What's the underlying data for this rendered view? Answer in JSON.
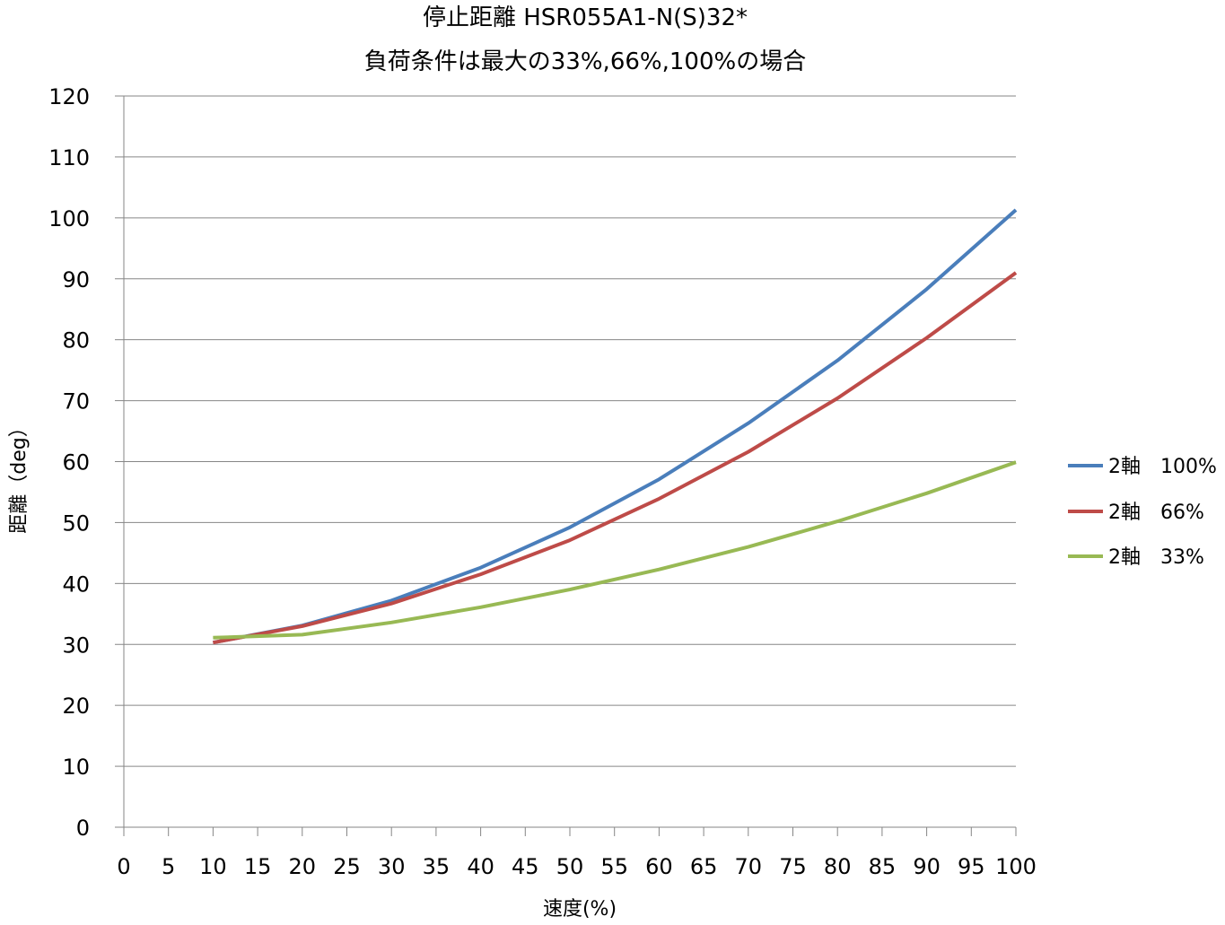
{
  "chart_data": {
    "type": "line",
    "title": [
      "停止距離 HSR055A1-N(S)32*",
      "負荷条件は最大の33%,66%,100%の場合"
    ],
    "xlabel": "速度(%)",
    "ylabel": "距離（deg）",
    "xlim": [
      0,
      100
    ],
    "ylim": [
      0,
      120
    ],
    "x_ticks": [
      "0",
      "5",
      "10",
      "15",
      "20",
      "25",
      "30",
      "35",
      "40",
      "45",
      "50",
      "55",
      "60",
      "65",
      "70",
      "75",
      "80",
      "85",
      "90",
      "95",
      "100"
    ],
    "y_ticks": [
      "0",
      "10",
      "20",
      "30",
      "40",
      "50",
      "60",
      "70",
      "80",
      "90",
      "100",
      "110",
      "120"
    ],
    "x": [
      10,
      20,
      30,
      40,
      50,
      60,
      70,
      80,
      90,
      100
    ],
    "grid": "horizontal",
    "legend_position": "right",
    "series": [
      {
        "name": "2軸　100%",
        "color": "#4a7ebb",
        "values": [
          30.3,
          33.1,
          37.2,
          42.6,
          49.2,
          57.1,
          66.3,
          76.6,
          88.3,
          101.3
        ]
      },
      {
        "name": "2軸　66%",
        "color": "#be4b48",
        "values": [
          30.3,
          33.0,
          36.7,
          41.5,
          47.1,
          53.9,
          61.6,
          70.4,
          80.3,
          91.0
        ]
      },
      {
        "name": "2軸　33%",
        "color": "#98b954",
        "values": [
          31.1,
          31.6,
          33.6,
          36.1,
          39.0,
          42.3,
          46.0,
          50.2,
          54.8,
          59.9
        ]
      }
    ]
  }
}
